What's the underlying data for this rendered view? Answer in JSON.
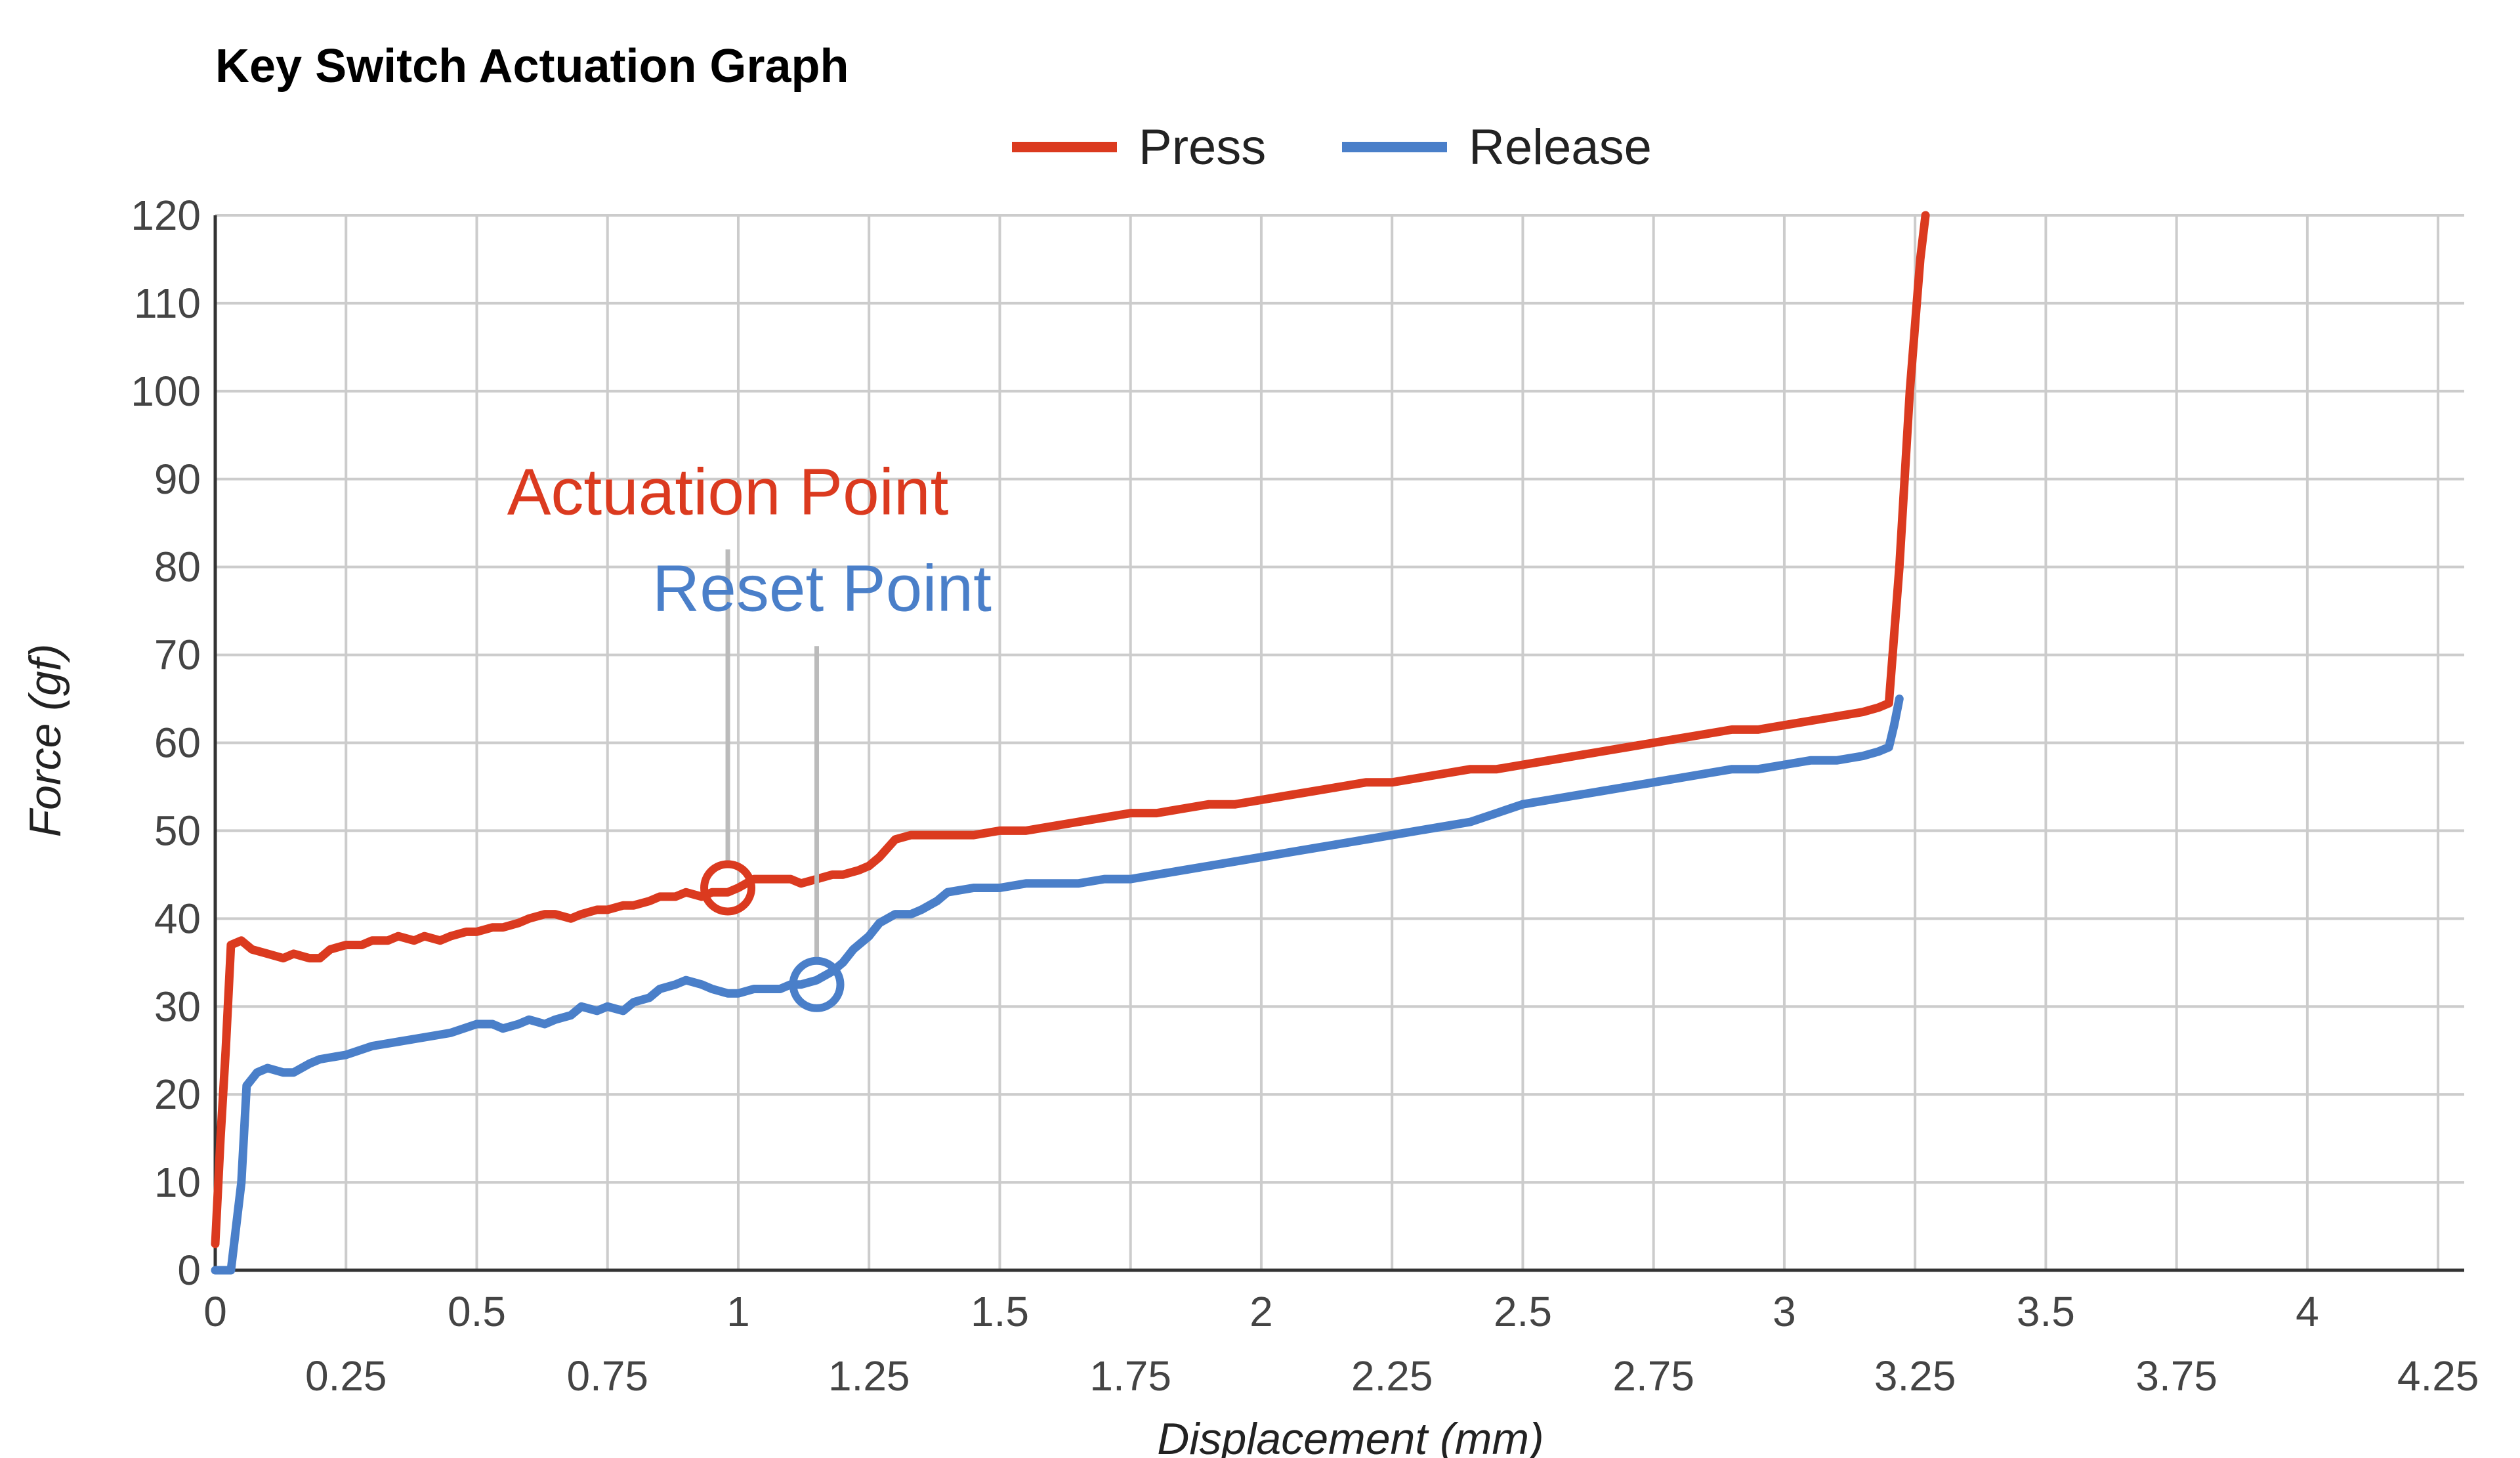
{
  "colors": {
    "press": "#db3a1f",
    "release": "#4a7fc9",
    "grid": "#cccccc",
    "axis": "#333333",
    "leader": "#bbbbbb"
  },
  "chart_data": {
    "type": "line",
    "title": "Key Switch Actuation Graph",
    "xlabel": "Displacement (mm)",
    "ylabel": "Force (gf)",
    "xlim": [
      0,
      4.3
    ],
    "ylim": [
      0,
      120
    ],
    "grid": true,
    "legend_position": "top-center",
    "x_ticks_major": [
      "0",
      "0.5",
      "1",
      "1.5",
      "2",
      "2.5",
      "3",
      "3.5",
      "4"
    ],
    "x_ticks_minor": [
      "0.25",
      "0.75",
      "1.25",
      "1.75",
      "2.25",
      "2.75",
      "3.25",
      "3.75",
      "4.25"
    ],
    "y_ticks": [
      "0",
      "10",
      "20",
      "30",
      "40",
      "50",
      "60",
      "70",
      "80",
      "90",
      "100",
      "110",
      "120"
    ],
    "series": [
      {
        "name": "Press",
        "color": "#db3a1f",
        "x": [
          0.0,
          0.01,
          0.02,
          0.03,
          0.05,
          0.07,
          0.1,
          0.13,
          0.15,
          0.18,
          0.2,
          0.22,
          0.25,
          0.28,
          0.3,
          0.33,
          0.35,
          0.38,
          0.4,
          0.43,
          0.45,
          0.48,
          0.5,
          0.53,
          0.55,
          0.58,
          0.6,
          0.63,
          0.65,
          0.68,
          0.7,
          0.73,
          0.75,
          0.78,
          0.8,
          0.83,
          0.85,
          0.88,
          0.9,
          0.93,
          0.95,
          0.98,
          1.0,
          1.03,
          1.05,
          1.08,
          1.1,
          1.12,
          1.15,
          1.18,
          1.2,
          1.23,
          1.25,
          1.27,
          1.3,
          1.33,
          1.35,
          1.4,
          1.45,
          1.5,
          1.55,
          1.6,
          1.65,
          1.7,
          1.75,
          1.8,
          1.85,
          1.9,
          1.95,
          2.0,
          2.05,
          2.1,
          2.15,
          2.2,
          2.25,
          2.3,
          2.35,
          2.4,
          2.45,
          2.5,
          2.55,
          2.6,
          2.65,
          2.7,
          2.75,
          2.8,
          2.85,
          2.9,
          2.95,
          3.0,
          3.05,
          3.1,
          3.15,
          3.18,
          3.2,
          3.22,
          3.24,
          3.26,
          3.27
        ],
        "y": [
          3,
          15,
          25,
          37,
          37.5,
          36.5,
          36,
          35.5,
          36,
          35.5,
          35.5,
          36.5,
          37,
          37,
          37.5,
          37.5,
          38,
          37.5,
          38,
          37.5,
          38,
          38.5,
          38.5,
          39,
          39,
          39.5,
          40,
          40.5,
          40.5,
          40,
          40.5,
          41,
          41,
          41.5,
          41.5,
          42,
          42.5,
          42.5,
          43,
          42.5,
          43,
          43,
          43.5,
          44.5,
          44.5,
          44.5,
          44.5,
          44,
          44.5,
          45,
          45,
          45.5,
          46,
          47,
          49,
          49.5,
          49.5,
          49.5,
          49.5,
          50,
          50,
          50.5,
          51,
          51.5,
          52,
          52,
          52.5,
          53,
          53,
          53.5,
          54,
          54.5,
          55,
          55.5,
          55.5,
          56,
          56.5,
          57,
          57,
          57.5,
          58,
          58.5,
          59,
          59.5,
          60,
          60.5,
          61,
          61.5,
          61.5,
          62,
          62.5,
          63,
          63.5,
          64,
          64.5,
          80,
          100,
          115,
          120
        ]
      },
      {
        "name": "Release",
        "color": "#4a7fc9",
        "x": [
          0.0,
          0.03,
          0.05,
          0.06,
          0.08,
          0.1,
          0.13,
          0.15,
          0.18,
          0.2,
          0.25,
          0.3,
          0.35,
          0.4,
          0.45,
          0.5,
          0.53,
          0.55,
          0.58,
          0.6,
          0.63,
          0.65,
          0.68,
          0.7,
          0.73,
          0.75,
          0.78,
          0.8,
          0.83,
          0.85,
          0.88,
          0.9,
          0.93,
          0.95,
          0.98,
          1.0,
          1.03,
          1.05,
          1.08,
          1.1,
          1.12,
          1.15,
          1.18,
          1.2,
          1.22,
          1.25,
          1.27,
          1.3,
          1.33,
          1.35,
          1.38,
          1.4,
          1.45,
          1.5,
          1.55,
          1.6,
          1.65,
          1.7,
          1.75,
          1.8,
          1.85,
          1.9,
          1.95,
          2.0,
          2.05,
          2.1,
          2.15,
          2.2,
          2.25,
          2.3,
          2.35,
          2.4,
          2.45,
          2.5,
          2.55,
          2.6,
          2.65,
          2.7,
          2.75,
          2.8,
          2.85,
          2.9,
          2.95,
          3.0,
          3.05,
          3.1,
          3.15,
          3.18,
          3.2,
          3.21,
          3.22
        ],
        "y": [
          0,
          0,
          10,
          21,
          22.5,
          23,
          22.5,
          22.5,
          23.5,
          24,
          24.5,
          25.5,
          26,
          26.5,
          27,
          28,
          28,
          27.5,
          28,
          28.5,
          28,
          28.5,
          29,
          30,
          29.5,
          30,
          29.5,
          30.5,
          31,
          32,
          32.5,
          33,
          32.5,
          32,
          31.5,
          31.5,
          32,
          32,
          32,
          32.5,
          32.5,
          33,
          34,
          35,
          36.5,
          38,
          39.5,
          40.5,
          40.5,
          41,
          42,
          43,
          43.5,
          43.5,
          44,
          44,
          44,
          44.5,
          44.5,
          45,
          45.5,
          46,
          46.5,
          47,
          47.5,
          48,
          48.5,
          49,
          49.5,
          50,
          50.5,
          51,
          52,
          53,
          53.5,
          54,
          54.5,
          55,
          55.5,
          56,
          56.5,
          57,
          57,
          57.5,
          58,
          58,
          58.5,
          59,
          59.5,
          62,
          65
        ]
      }
    ],
    "annotations": [
      {
        "label": "Actuation Point",
        "series": "Press",
        "x": 0.98,
        "y": 43.5,
        "label_x": 0.98,
        "label_y": 86,
        "line_top_y": 82,
        "color": "#db3a1f"
      },
      {
        "label": "Reset Point",
        "series": "Release",
        "x": 1.15,
        "y": 32.5,
        "label_x": 1.16,
        "label_y": 75,
        "line_top_y": 71,
        "color": "#4a7fc9"
      }
    ]
  }
}
